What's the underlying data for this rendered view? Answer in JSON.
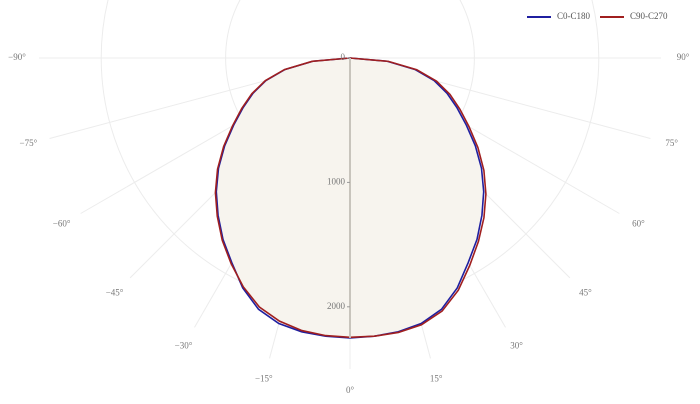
{
  "chart_data": {
    "type": "polar",
    "angles": [
      -90,
      -85,
      -80,
      -75,
      -70,
      -65,
      -60,
      -55,
      -50,
      -45,
      -40,
      -35,
      -30,
      -25,
      -20,
      -15,
      -10,
      -5,
      0,
      5,
      10,
      15,
      20,
      25,
      30,
      35,
      40,
      45,
      50,
      55,
      60,
      65,
      70,
      75,
      80,
      85,
      90
    ],
    "series": [
      {
        "name": "C0-C180",
        "color": "#1f1fa0",
        "values": [
          0,
          300,
          530,
          700,
          830,
          950,
          1080,
          1230,
          1380,
          1520,
          1650,
          1780,
          1900,
          2040,
          2150,
          2210,
          2235,
          2245,
          2250,
          2245,
          2235,
          2210,
          2150,
          2040,
          1900,
          1780,
          1650,
          1520,
          1380,
          1230,
          1080,
          950,
          830,
          700,
          530,
          300,
          0
        ]
      },
      {
        "name": "C90-C270",
        "color": "#a01f1f",
        "values": [
          0,
          305,
          535,
          705,
          840,
          960,
          1090,
          1240,
          1390,
          1530,
          1660,
          1790,
          1910,
          2030,
          2130,
          2190,
          2225,
          2240,
          2245,
          2245,
          2240,
          2220,
          2165,
          2060,
          1925,
          1800,
          1675,
          1545,
          1405,
          1255,
          1105,
          975,
          855,
          720,
          545,
          310,
          0
        ]
      }
    ],
    "rlim": [
      0,
      2500
    ],
    "rticks": [
      0,
      1000,
      2000
    ],
    "angle_ticks": [
      {
        "value": -90,
        "label": "−90°"
      },
      {
        "value": -75,
        "label": "−75°"
      },
      {
        "value": -60,
        "label": "−60°"
      },
      {
        "value": -45,
        "label": "−45°"
      },
      {
        "value": -30,
        "label": "−30°"
      },
      {
        "value": -15,
        "label": "−15°"
      },
      {
        "value": 0,
        "label": "0°"
      },
      {
        "value": 15,
        "label": "15°"
      },
      {
        "value": 30,
        "label": "30°"
      },
      {
        "value": 45,
        "label": "45°"
      },
      {
        "value": 60,
        "label": "60°"
      },
      {
        "value": 75,
        "label": "75°"
      },
      {
        "value": 90,
        "label": "90°"
      }
    ],
    "fill": "#f7f4ee",
    "grid": true
  }
}
